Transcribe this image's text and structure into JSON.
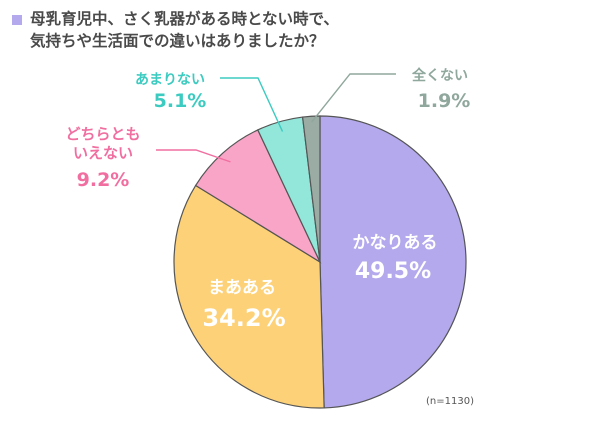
{
  "chart_data": {
    "type": "pie",
    "title_lines": [
      "母乳育児中、さく乳器がある時とない時で、",
      "気持ちや生活面での違いはありましたか？"
    ],
    "slices": [
      {
        "label": "かなりある",
        "value": 49.5,
        "display": "49.5%",
        "color": "#b4a9ed"
      },
      {
        "label": "まあある",
        "value": 34.2,
        "display": "34.2%",
        "color": "#fdd178"
      },
      {
        "label_lines": [
          "どちらとも",
          "いえない"
        ],
        "value": 9.2,
        "display": "9.2%",
        "color": "#f9a5c7"
      },
      {
        "label": "あまりない",
        "value": 5.1,
        "display": "5.1%",
        "color": "#92e6da"
      },
      {
        "label": "全くない",
        "value": 1.9,
        "display": "1.9%",
        "color": "#9aaca4"
      }
    ],
    "note": "(n=1130)",
    "accent_color": "#b4a9ed",
    "label_colors": {
      "outside_pink": "#f06fa0",
      "outside_teal": "#3ccbc0",
      "outside_gray": "#8fa79c",
      "inside": "#ffffff"
    }
  }
}
